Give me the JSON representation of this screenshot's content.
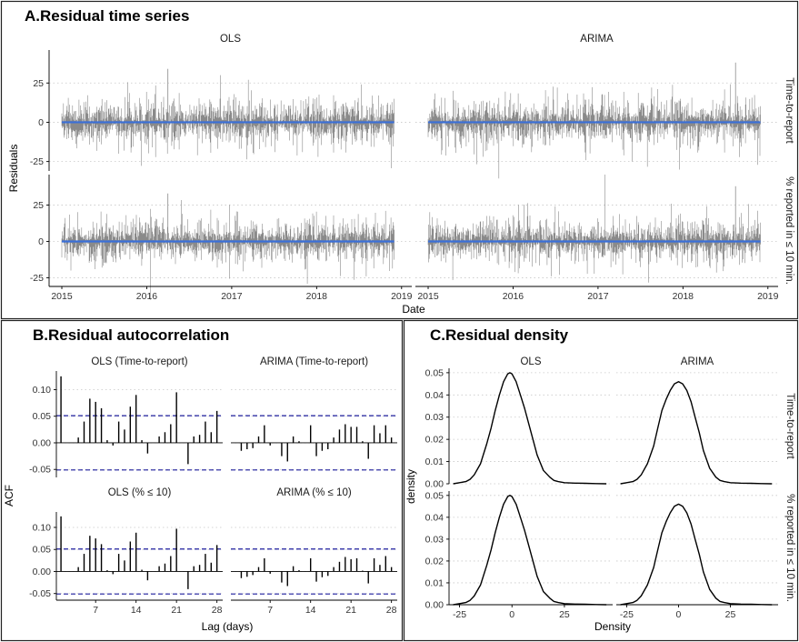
{
  "panels": {
    "a_title": "A.Residual time series",
    "b_title": "B.Residual autocorrelation",
    "c_title": "C.Residual density"
  },
  "chart_data": [
    {
      "id": "A",
      "type": "line",
      "title": "A.Residual time series",
      "xlabel": "Date",
      "ylabel": "Residuals",
      "facet_cols": [
        "OLS",
        "ARIMA"
      ],
      "facet_rows": [
        "Time-to-report",
        "% reported in ≤ 10 min."
      ],
      "x_ticks": [
        "2015",
        "2016",
        "2017",
        "2018",
        "2019"
      ],
      "x_range": [
        "2015-01-01",
        "2018-11-30"
      ],
      "y_ticks": [
        -25,
        0,
        25
      ],
      "ylim": [
        -31,
        46
      ],
      "fitted_line_y": 0,
      "colors": {
        "residual": "#8a8a8a",
        "zero_line": "#3a6fd8"
      },
      "spikes": [
        {
          "panel": "OLS / Time-to-report",
          "date": "2016-04-01",
          "value": 34
        },
        {
          "panel": "OLS / % reported in ≤ 10 min.",
          "date": "2016-04-01",
          "value": 33
        },
        {
          "panel": "ARIMA / Time-to-report",
          "date": "2018-08-15",
          "value": 38
        },
        {
          "panel": "ARIMA / % reported in ≤ 10 min.",
          "date": "2018-08-15",
          "value": 38
        }
      ],
      "approx_residual_range": [
        -20,
        20
      ]
    },
    {
      "id": "B",
      "type": "bar",
      "title": "B.Residual autocorrelation",
      "xlabel": "Lag (days)",
      "ylabel": "ACF",
      "facets": [
        "OLS (Time-to-report)",
        "ARIMA (Time-to-report)",
        "OLS (% ≤ 10)",
        "ARIMA (% ≤ 10)"
      ],
      "x_ticks": [
        7,
        14,
        21,
        28
      ],
      "y_ticks": [
        -0.05,
        0.0,
        0.05,
        0.1
      ],
      "y_tick_labels": [
        "-0.05",
        "0.00",
        "0.05",
        "0.10"
      ],
      "ylim": [
        -0.065,
        0.135
      ],
      "confidence_band": [
        -0.051,
        0.051
      ],
      "colors": {
        "bars": "#000000",
        "ci": "#1f1f9e"
      },
      "series": [
        {
          "name": "OLS (Time-to-report)",
          "lags": [
            1,
            2,
            3,
            4,
            5,
            6,
            7,
            8,
            9,
            10,
            11,
            12,
            13,
            14,
            15,
            16,
            17,
            18,
            19,
            20,
            21,
            22,
            23,
            24,
            25,
            26,
            27,
            28
          ],
          "values": [
            0.125,
            0.0,
            0.0,
            0.01,
            0.04,
            0.083,
            0.077,
            0.065,
            0.005,
            -0.005,
            0.04,
            0.025,
            0.068,
            0.09,
            0.005,
            -0.02,
            0.0,
            0.012,
            0.02,
            0.035,
            0.095,
            0.0,
            -0.04,
            0.012,
            0.015,
            0.04,
            0.02,
            0.06
          ]
        },
        {
          "name": "ARIMA (Time-to-report)",
          "lags": [
            1,
            2,
            3,
            4,
            5,
            6,
            7,
            8,
            9,
            10,
            11,
            12,
            13,
            14,
            15,
            16,
            17,
            18,
            19,
            20,
            21,
            22,
            23,
            24,
            25,
            26,
            27,
            28
          ],
          "values": [
            0.0,
            -0.015,
            -0.012,
            -0.01,
            0.012,
            0.033,
            -0.005,
            0.0,
            -0.025,
            -0.035,
            0.012,
            0.003,
            0.0,
            0.033,
            -0.025,
            -0.015,
            -0.012,
            0.01,
            0.025,
            0.035,
            0.03,
            0.03,
            0.003,
            -0.03,
            0.033,
            0.018,
            0.033,
            0.01
          ]
        },
        {
          "name": "OLS (% ≤ 10)",
          "lags": [
            1,
            2,
            3,
            4,
            5,
            6,
            7,
            8,
            9,
            10,
            11,
            12,
            13,
            14,
            15,
            16,
            17,
            18,
            19,
            20,
            21,
            22,
            23,
            24,
            25,
            26,
            27,
            28
          ],
          "values": [
            0.125,
            0.0,
            0.0,
            0.01,
            0.04,
            0.081,
            0.075,
            0.062,
            0.003,
            -0.006,
            0.04,
            0.025,
            0.068,
            0.088,
            0.004,
            -0.02,
            0.0,
            0.012,
            0.018,
            0.035,
            0.097,
            0.0,
            -0.04,
            0.012,
            0.015,
            0.04,
            0.02,
            0.06
          ]
        },
        {
          "name": "ARIMA (% ≤ 10)",
          "lags": [
            1,
            2,
            3,
            4,
            5,
            6,
            7,
            8,
            9,
            10,
            11,
            12,
            13,
            14,
            15,
            16,
            17,
            18,
            19,
            20,
            21,
            22,
            23,
            24,
            25,
            26,
            27,
            28
          ],
          "values": [
            0.0,
            -0.015,
            -0.012,
            -0.008,
            0.01,
            0.03,
            -0.005,
            0.0,
            -0.025,
            -0.033,
            0.012,
            0.003,
            0.0,
            0.03,
            -0.023,
            -0.013,
            -0.01,
            0.01,
            0.022,
            0.033,
            0.028,
            0.03,
            0.002,
            -0.027,
            0.03,
            0.015,
            0.035,
            0.01
          ]
        }
      ]
    },
    {
      "id": "C",
      "type": "line",
      "title": "C.Residual density",
      "xlabel": "Density",
      "ylabel": "density",
      "facet_cols": [
        "OLS",
        "ARIMA"
      ],
      "facet_rows": [
        "Time-to-report",
        "% reported in ≤ 10 min."
      ],
      "x_ticks": [
        -25,
        0,
        25
      ],
      "xlim": [
        -30,
        48
      ],
      "y_ticks": [
        0.0,
        0.01,
        0.02,
        0.03,
        0.04,
        0.05
      ],
      "y_tick_labels": [
        "0.00",
        "0.01",
        "0.02",
        "0.03",
        "0.04",
        "0.05"
      ],
      "ylim": [
        0,
        0.052
      ],
      "series": [
        {
          "name": "OLS / Time-to-report",
          "x": [
            -28,
            -25,
            -22,
            -20,
            -18,
            -15,
            -12,
            -10,
            -8,
            -6,
            -4,
            -2,
            -1,
            0,
            2,
            4,
            6,
            8,
            10,
            12,
            15,
            18,
            20,
            22,
            25,
            30,
            35,
            40,
            45
          ],
          "y": [
            0.0,
            0.0005,
            0.001,
            0.002,
            0.004,
            0.009,
            0.018,
            0.025,
            0.033,
            0.04,
            0.046,
            0.0495,
            0.05,
            0.0495,
            0.046,
            0.04,
            0.034,
            0.027,
            0.02,
            0.013,
            0.006,
            0.003,
            0.0015,
            0.001,
            0.0005,
            0.0003,
            0.0002,
            0.0001,
            0.0
          ]
        },
        {
          "name": "ARIMA / Time-to-report",
          "x": [
            -28,
            -25,
            -22,
            -20,
            -18,
            -15,
            -12,
            -10,
            -8,
            -6,
            -4,
            -2,
            0,
            2,
            4,
            6,
            8,
            10,
            12,
            15,
            18,
            20,
            22,
            25,
            30,
            35,
            40,
            45
          ],
          "y": [
            0.0,
            0.0005,
            0.001,
            0.002,
            0.004,
            0.009,
            0.017,
            0.025,
            0.033,
            0.038,
            0.042,
            0.045,
            0.046,
            0.045,
            0.042,
            0.037,
            0.03,
            0.023,
            0.015,
            0.007,
            0.003,
            0.0015,
            0.001,
            0.0005,
            0.0003,
            0.0002,
            0.0001,
            0.0
          ]
        },
        {
          "name": "OLS / % reported in ≤ 10 min.",
          "x": [
            -28,
            -25,
            -22,
            -20,
            -18,
            -15,
            -12,
            -10,
            -8,
            -6,
            -4,
            -2,
            -1,
            0,
            2,
            4,
            6,
            8,
            10,
            12,
            15,
            18,
            20,
            22,
            25,
            30,
            35,
            40,
            45
          ],
          "y": [
            0.0,
            0.0005,
            0.001,
            0.002,
            0.004,
            0.009,
            0.018,
            0.025,
            0.033,
            0.04,
            0.046,
            0.0495,
            0.05,
            0.0495,
            0.046,
            0.04,
            0.034,
            0.027,
            0.02,
            0.013,
            0.006,
            0.003,
            0.0015,
            0.001,
            0.0005,
            0.0003,
            0.0002,
            0.0001,
            0.0
          ]
        },
        {
          "name": "ARIMA / % reported in ≤ 10 min.",
          "x": [
            -28,
            -25,
            -22,
            -20,
            -18,
            -15,
            -12,
            -10,
            -8,
            -6,
            -4,
            -2,
            0,
            2,
            4,
            6,
            8,
            10,
            12,
            15,
            18,
            20,
            22,
            25,
            30,
            35,
            40,
            45
          ],
          "y": [
            0.0,
            0.0005,
            0.001,
            0.002,
            0.004,
            0.009,
            0.017,
            0.025,
            0.033,
            0.038,
            0.042,
            0.045,
            0.046,
            0.045,
            0.042,
            0.037,
            0.03,
            0.023,
            0.015,
            0.007,
            0.003,
            0.0015,
            0.001,
            0.0005,
            0.0003,
            0.0002,
            0.0001,
            0.0
          ]
        }
      ]
    }
  ]
}
